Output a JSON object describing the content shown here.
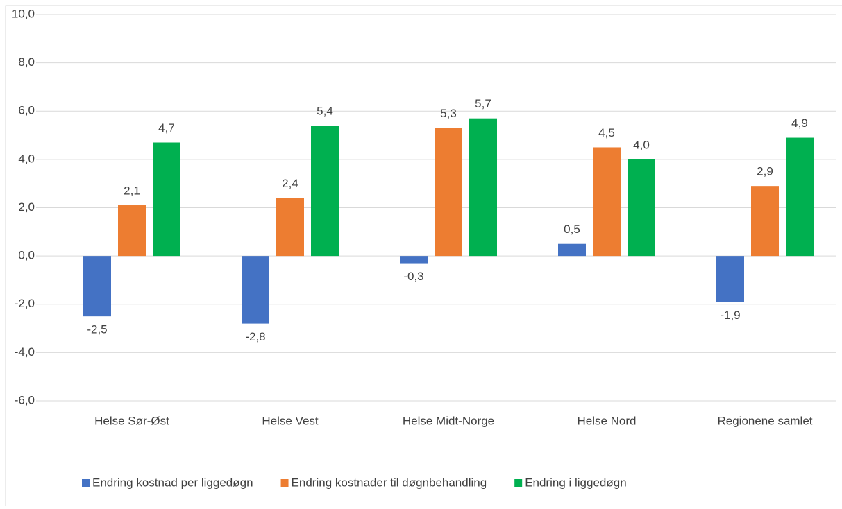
{
  "chart_data": {
    "type": "bar",
    "categories": [
      "Helse Sør-Øst",
      "Helse Vest",
      "Helse Midt-Norge",
      "Helse Nord",
      "Regionene samlet"
    ],
    "series": [
      {
        "name": "Endring kostnad per liggedøgn",
        "color": "#4472c4",
        "values": [
          -2.5,
          -2.8,
          -0.3,
          0.5,
          -1.9
        ],
        "value_labels": [
          "-2,5",
          "-2,8",
          "-0,3",
          "0,5",
          "-1,9"
        ]
      },
      {
        "name": "Endring kostnader til døgnbehandling",
        "color": "#ed7d31",
        "values": [
          2.1,
          2.4,
          5.3,
          4.5,
          2.9
        ],
        "value_labels": [
          "2,1",
          "2,4",
          "5,3",
          "4,5",
          "2,9"
        ]
      },
      {
        "name": "Endring i liggedøgn",
        "color": "#00b050",
        "values": [
          4.7,
          5.4,
          5.7,
          4.0,
          4.9
        ],
        "value_labels": [
          "4,7",
          "5,4",
          "5,7",
          "4,0",
          "4,9"
        ]
      }
    ],
    "ylim": [
      -6,
      10
    ],
    "yticks": [
      {
        "value": -6,
        "label": "-6,0"
      },
      {
        "value": -4,
        "label": "-4,0"
      },
      {
        "value": -2,
        "label": "-2,0"
      },
      {
        "value": 0,
        "label": "0,0"
      },
      {
        "value": 2,
        "label": "2,0"
      },
      {
        "value": 4,
        "label": "4,0"
      },
      {
        "value": 6,
        "label": "6,0"
      },
      {
        "value": 8,
        "label": "8,0"
      },
      {
        "value": 10,
        "label": "10,0"
      }
    ],
    "grid": true,
    "legend": "bottom"
  }
}
